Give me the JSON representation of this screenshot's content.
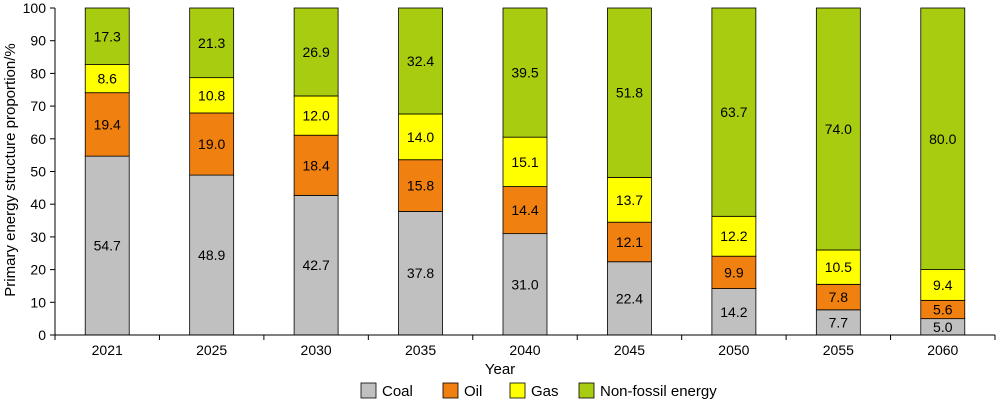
{
  "chart_data": {
    "type": "bar",
    "stacked": true,
    "categories": [
      "2021",
      "2025",
      "2030",
      "2035",
      "2040",
      "2045",
      "2050",
      "2055",
      "2060"
    ],
    "series": [
      {
        "name": "Coal",
        "color": "#c0c0c0",
        "values": [
          54.7,
          48.9,
          42.7,
          37.8,
          31.0,
          22.4,
          14.2,
          7.7,
          5.0
        ]
      },
      {
        "name": "Oil",
        "color": "#f08010",
        "values": [
          19.4,
          19.0,
          18.4,
          15.8,
          14.4,
          12.1,
          9.9,
          7.8,
          5.6
        ]
      },
      {
        "name": "Gas",
        "color": "#ffff00",
        "values": [
          8.6,
          10.8,
          12.0,
          14.0,
          15.1,
          13.7,
          12.2,
          10.5,
          9.4
        ]
      },
      {
        "name": "Non-fossil energy",
        "color": "#a8cc10",
        "values": [
          17.3,
          21.3,
          26.9,
          32.4,
          39.5,
          51.8,
          63.7,
          74.0,
          80.0
        ]
      }
    ],
    "title": "",
    "xlabel": "Year",
    "ylabel": "Primary energy structure proportion/%",
    "ylim": [
      0,
      100
    ],
    "yticks": [
      0,
      10,
      20,
      30,
      40,
      50,
      60,
      70,
      80,
      90,
      100
    ],
    "legend": "bottom",
    "grid": false
  }
}
